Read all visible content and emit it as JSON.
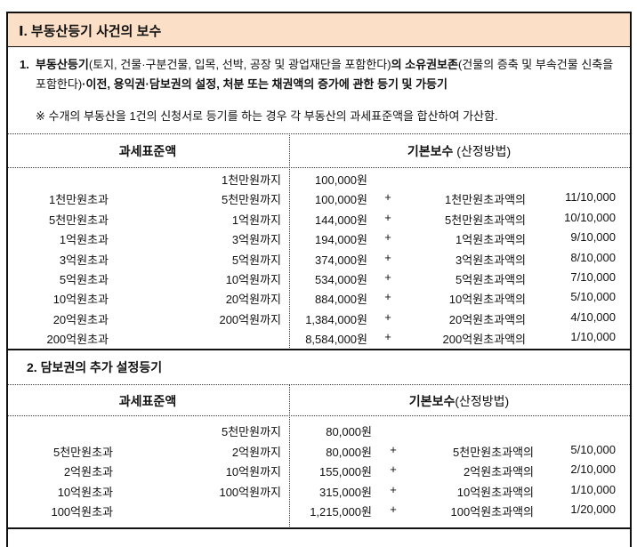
{
  "heading": "Ⅰ. 부동산등기 사건의 보수",
  "section1": {
    "number": "1.",
    "title_parts": [
      {
        "text": "부동산등기",
        "bold": true
      },
      {
        "text": "(토지, 건물·구분건물, 입목, 선박, 공장 및 광업재단을 포함한다)",
        "bold": false
      },
      {
        "text": "의 소유권보존",
        "bold": true
      },
      {
        "text": "(건물의 증축 및 부속건물 신축을 포함한다)",
        "bold": false
      },
      {
        "text": "·이전, 용익권·담보권의 설정, 처분 또는 채권액의 증가에 관한 등기 및 가등기",
        "bold": true
      }
    ],
    "note": "※ 수개의 부동산을 1건의 신청서로 등기를 하는 경우 각 부동산의 과세표준액을 합산하여 가산함.",
    "header_left": "과세표준액",
    "header_right": "기본보수",
    "header_right_sub": " (산정방법)",
    "rows": [
      {
        "from": "",
        "to": "1천만원까지",
        "base": "100,000원",
        "plus": "",
        "excess": "",
        "rate": ""
      },
      {
        "from": "1천만원초과",
        "to": "5천만원까지",
        "base": "100,000원",
        "plus": "+",
        "excess": "1천만원초과액의",
        "rate": "11/10,000"
      },
      {
        "from": "5천만원초과",
        "to": "1억원까지",
        "base": "144,000원",
        "plus": "+",
        "excess": "5천만원초과액의",
        "rate": "10/10,000"
      },
      {
        "from": "1억원초과",
        "to": "3억원까지",
        "base": "194,000원",
        "plus": "+",
        "excess": "1억원초과액의",
        "rate": "9/10,000"
      },
      {
        "from": "3억원초과",
        "to": "5억원까지",
        "base": "374,000원",
        "plus": "+",
        "excess": "3억원초과액의",
        "rate": "8/10,000"
      },
      {
        "from": "5억원초과",
        "to": "10억원까지",
        "base": "534,000원",
        "plus": "+",
        "excess": "5억원초과액의",
        "rate": "7/10,000"
      },
      {
        "from": "10억원초과",
        "to": "20억원까지",
        "base": "884,000원",
        "plus": "+",
        "excess": "10억원초과액의",
        "rate": "5/10,000"
      },
      {
        "from": "20억원초과",
        "to": "200억원까지",
        "base": "1,384,000원",
        "plus": "+",
        "excess": "20억원초과액의",
        "rate": "4/10,000"
      },
      {
        "from": "200억원초과",
        "to": "",
        "base": "8,584,000원",
        "plus": "+",
        "excess": "200억원초과액의",
        "rate": "1/10,000"
      }
    ]
  },
  "section2": {
    "title": "2. 담보권의 추가 설정등기",
    "header_left": "과세표준액",
    "header_right": "기본보수",
    "header_right_sub": "(산정방법)",
    "rows": [
      {
        "from": "",
        "to": "5천만원까지",
        "base": "80,000원",
        "plus": "",
        "excess": "",
        "rate": ""
      },
      {
        "from": "5천만원초과",
        "to": "2억원까지",
        "base": "80,000원",
        "plus": "+",
        "excess": "5천만원초과액의",
        "rate": "5/10,000"
      },
      {
        "from": "2억원초과",
        "to": "10억원까지",
        "base": "155,000원",
        "plus": "+",
        "excess": "2억원초과액의",
        "rate": "2/10,000"
      },
      {
        "from": "10억원초과",
        "to": "100억원까지",
        "base": "315,000원",
        "plus": "+",
        "excess": "10억원초과액의",
        "rate": "1/10,000"
      },
      {
        "from": "100억원초과",
        "to": "",
        "base": "1,215,000원",
        "plus": "+",
        "excess": "100억원초과액의",
        "rate": "1/20,000"
      }
    ]
  }
}
